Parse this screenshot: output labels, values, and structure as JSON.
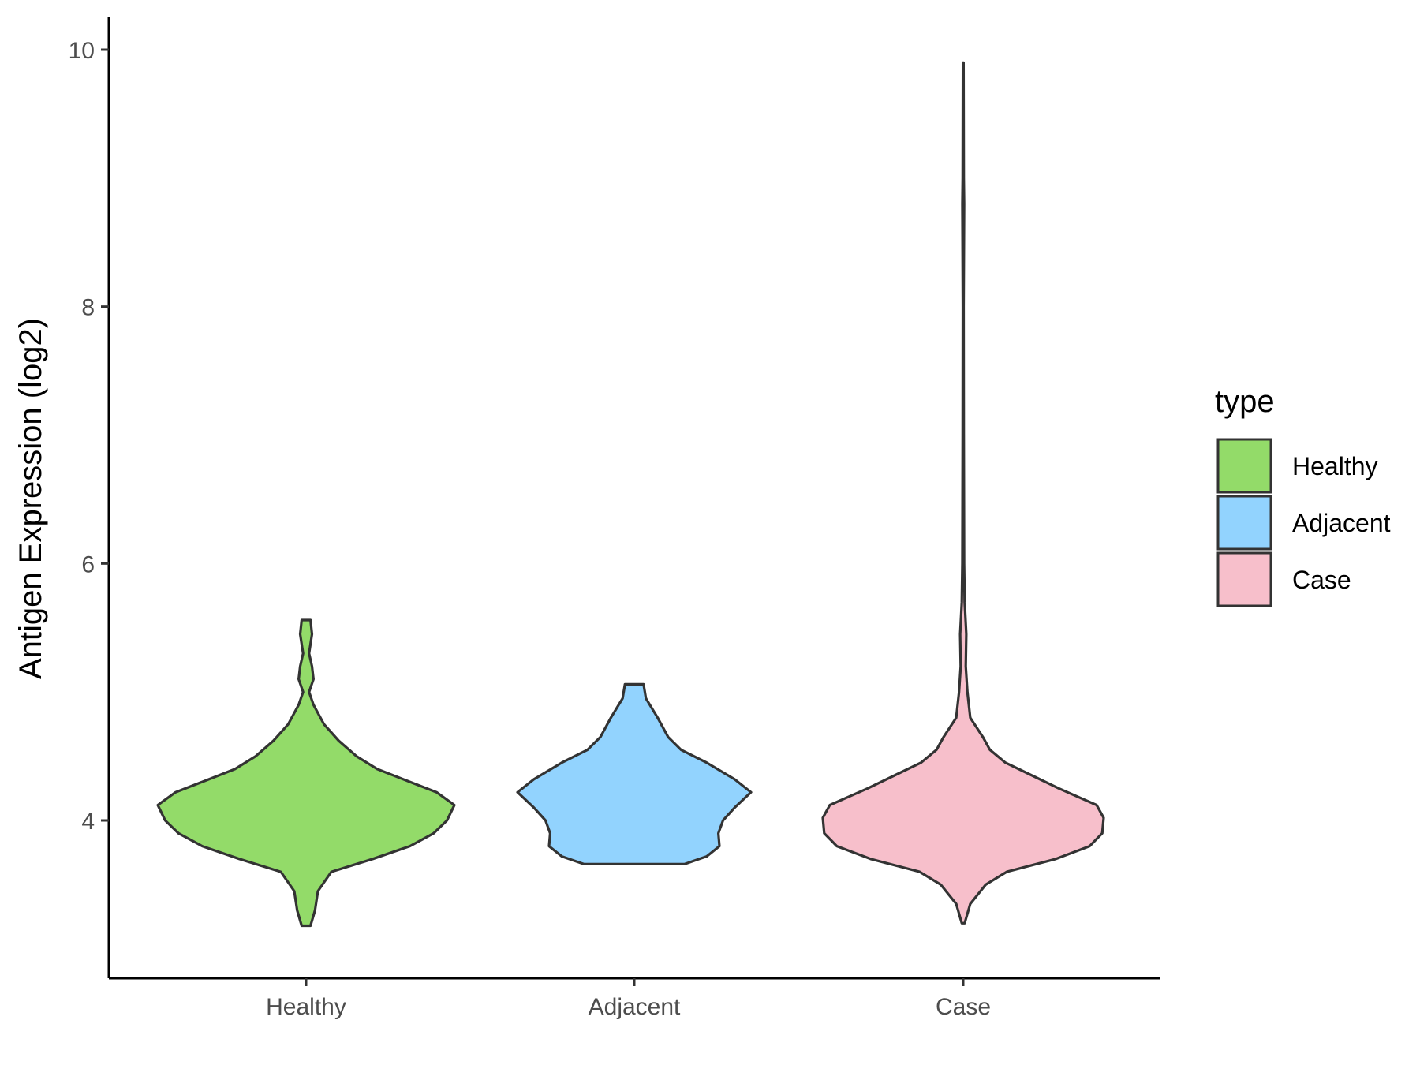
{
  "chart_data": {
    "type": "violin",
    "ylabel": "Antigen Expression (log2)",
    "xlabel": "",
    "ylim": [
      3.0,
      10.25
    ],
    "yticks": [
      4,
      6,
      8,
      10
    ],
    "grid": false,
    "legend": {
      "title": "type",
      "position": "right",
      "entries": [
        {
          "label": "Healthy",
          "color": "#93DB69"
        },
        {
          "label": "Adjacent",
          "color": "#92D3FE"
        },
        {
          "label": "Case",
          "color": "#F7BFCB"
        }
      ]
    },
    "categories": [
      "Healthy",
      "Adjacent",
      "Case"
    ],
    "series": [
      {
        "category": "Healthy",
        "color": "#93DB69",
        "min": 3.18,
        "max": 5.56,
        "profile": [
          [
            3.18,
            0.03
          ],
          [
            3.3,
            0.06
          ],
          [
            3.45,
            0.08
          ],
          [
            3.6,
            0.17
          ],
          [
            3.7,
            0.45
          ],
          [
            3.8,
            0.7
          ],
          [
            3.9,
            0.86
          ],
          [
            4.0,
            0.95
          ],
          [
            4.12,
            1.0
          ],
          [
            4.22,
            0.88
          ],
          [
            4.3,
            0.7
          ],
          [
            4.4,
            0.48
          ],
          [
            4.5,
            0.34
          ],
          [
            4.62,
            0.22
          ],
          [
            4.75,
            0.12
          ],
          [
            4.9,
            0.05
          ],
          [
            5.0,
            0.02
          ],
          [
            5.1,
            0.05
          ],
          [
            5.2,
            0.04
          ],
          [
            5.3,
            0.02
          ],
          [
            5.45,
            0.04
          ],
          [
            5.56,
            0.03
          ]
        ]
      },
      {
        "category": "Adjacent",
        "color": "#92D3FE",
        "min": 3.66,
        "max": 5.06,
        "profile": [
          [
            3.66,
            0.43
          ],
          [
            3.72,
            0.62
          ],
          [
            3.8,
            0.73
          ],
          [
            3.9,
            0.72
          ],
          [
            4.0,
            0.76
          ],
          [
            4.1,
            0.86
          ],
          [
            4.22,
            1.0
          ],
          [
            4.32,
            0.86
          ],
          [
            4.45,
            0.62
          ],
          [
            4.55,
            0.4
          ],
          [
            4.65,
            0.29
          ],
          [
            4.8,
            0.2
          ],
          [
            4.95,
            0.1
          ],
          [
            5.06,
            0.08
          ]
        ]
      },
      {
        "category": "Case",
        "color": "#F7BFCB",
        "min": 3.2,
        "max": 9.9,
        "profile": [
          [
            3.2,
            0.01
          ],
          [
            3.35,
            0.05
          ],
          [
            3.5,
            0.16
          ],
          [
            3.6,
            0.31
          ],
          [
            3.7,
            0.66
          ],
          [
            3.8,
            0.9
          ],
          [
            3.9,
            0.99
          ],
          [
            4.02,
            1.0
          ],
          [
            4.12,
            0.95
          ],
          [
            4.25,
            0.68
          ],
          [
            4.35,
            0.49
          ],
          [
            4.45,
            0.3
          ],
          [
            4.55,
            0.19
          ],
          [
            4.65,
            0.14
          ],
          [
            4.8,
            0.05
          ],
          [
            5.0,
            0.03
          ],
          [
            5.2,
            0.018
          ],
          [
            5.45,
            0.022
          ],
          [
            5.7,
            0.01
          ],
          [
            6.0,
            0.006
          ],
          [
            7.0,
            0.004
          ],
          [
            8.0,
            0.003
          ],
          [
            8.8,
            0.006
          ],
          [
            9.0,
            0.004
          ],
          [
            9.9,
            0.002
          ]
        ]
      }
    ]
  }
}
